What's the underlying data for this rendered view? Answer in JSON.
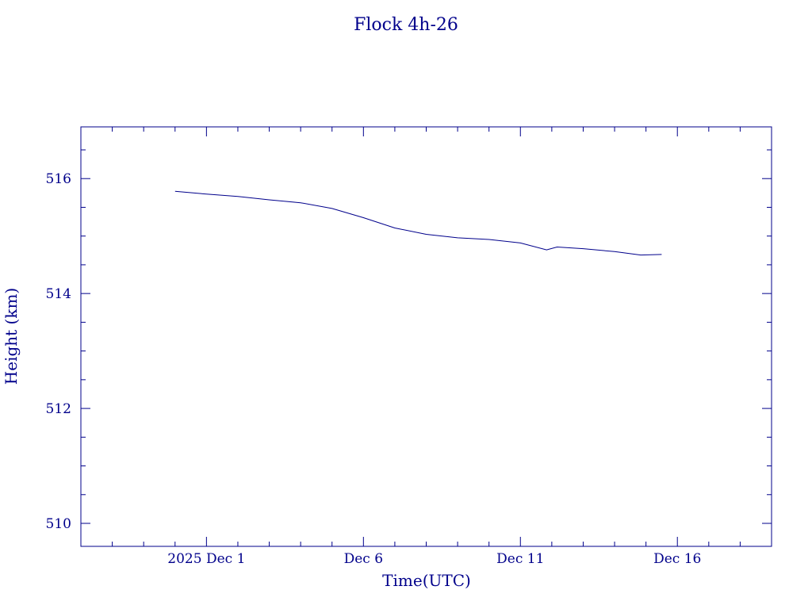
{
  "chart_data": {
    "type": "line",
    "title": "Flock 4h-26",
    "xlabel": "Time(UTC)",
    "ylabel": "Height (km)",
    "color": "#00008b",
    "xlim": [
      "2025-11-27",
      "2025-12-19"
    ],
    "ylim": [
      509.6,
      516.9
    ],
    "x_ticks": [
      {
        "date": "2025-12-01",
        "label": "2025 Dec  1"
      },
      {
        "date": "2025-12-06",
        "label": "Dec  6"
      },
      {
        "date": "2025-12-11",
        "label": "Dec 11"
      },
      {
        "date": "2025-12-16",
        "label": "Dec 16"
      }
    ],
    "y_ticks": [
      510,
      512,
      514,
      516
    ],
    "grid": false,
    "series": [
      {
        "x": [
          "2025-11-30 00:00",
          "2025-12-01 00:00",
          "2025-12-02 00:00",
          "2025-12-03 00:00",
          "2025-12-04 00:00",
          "2025-12-05 00:00",
          "2025-12-06 00:00",
          "2025-12-07 00:00",
          "2025-12-08 00:00",
          "2025-12-09 00:00",
          "2025-12-10 00:00",
          "2025-12-11 00:00",
          "2025-12-11 20:00",
          "2025-12-12 04:00",
          "2025-12-13 00:00",
          "2025-12-14 00:00",
          "2025-12-14 20:00",
          "2025-12-15 12:00"
        ],
        "y": [
          515.78,
          515.73,
          515.69,
          515.63,
          515.58,
          515.48,
          515.32,
          515.14,
          515.03,
          514.97,
          514.94,
          514.88,
          514.76,
          514.81,
          514.78,
          514.73,
          514.67,
          514.68
        ]
      }
    ]
  }
}
